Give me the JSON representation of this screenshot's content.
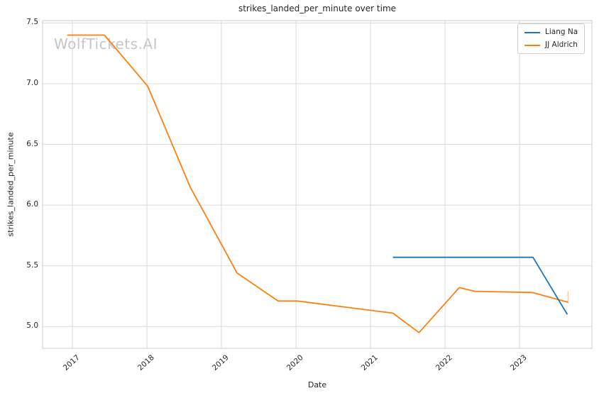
{
  "figure": {
    "watermark": "WolfTickets.AI"
  },
  "chart_data": {
    "type": "line",
    "title": "strikes_landed_per_minute over time",
    "xlabel": "Date",
    "ylabel": "strikes_landed_per_minute",
    "x_tick_labels": [
      "2017",
      "2018",
      "2019",
      "2020",
      "2021",
      "2022",
      "2023"
    ],
    "x_tick_values": [
      2017,
      2018,
      2019,
      2020,
      2021,
      2022,
      2023
    ],
    "y_tick_labels": [
      "5.0",
      "5.5",
      "6.0",
      "6.5",
      "7.0",
      "7.5"
    ],
    "y_tick_values": [
      5.0,
      5.5,
      6.0,
      6.5,
      7.0,
      7.5
    ],
    "xlim": [
      2016.6,
      2023.97
    ],
    "ylim": [
      4.82,
      7.52
    ],
    "grid": true,
    "legend_position": "upper right",
    "series": [
      {
        "name": "JJ Aldrich",
        "color": "#ff7f0e",
        "points": [
          [
            2016.93,
            7.4
          ],
          [
            2017.43,
            7.4
          ],
          [
            2018.01,
            6.98
          ],
          [
            2018.58,
            6.15
          ],
          [
            2019.21,
            5.44
          ],
          [
            2019.76,
            5.21
          ],
          [
            2020.02,
            5.21
          ],
          [
            2021.3,
            5.11
          ],
          [
            2021.65,
            4.95
          ],
          [
            2022.19,
            5.32
          ],
          [
            2022.4,
            5.29
          ],
          [
            2023.17,
            5.28
          ],
          [
            2023.65,
            5.2
          ]
        ],
        "end_tick": {
          "x": 2023.65,
          "y_from": 5.19,
          "y_to": 5.29
        }
      },
      {
        "name": "Liang Na",
        "color": "#1f77b4",
        "points": [
          [
            2021.3,
            5.57
          ],
          [
            2023.18,
            5.57
          ],
          [
            2023.64,
            5.1
          ]
        ]
      }
    ],
    "legend_order": [
      "Liang Na",
      "JJ Aldrich"
    ],
    "colors": {
      "grid": "#dcdcdc",
      "spine": "#cccccc",
      "text": "#262626",
      "watermark": "#c6c6c6"
    }
  }
}
